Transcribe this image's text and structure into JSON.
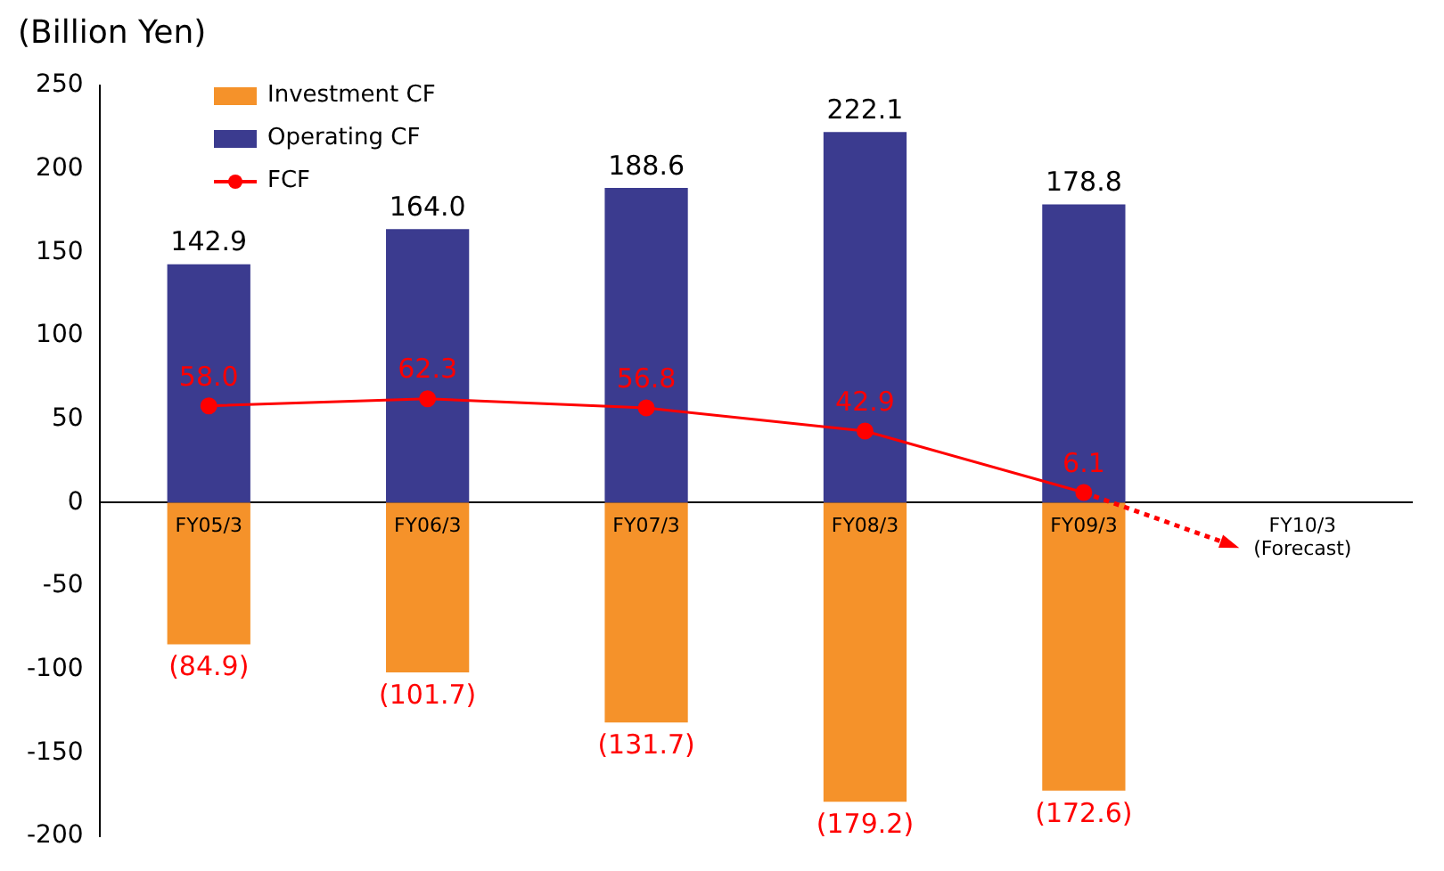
{
  "chart_data": {
    "type": "bar",
    "ylabel": "(Billion Yen)",
    "categories": [
      "FY05/3",
      "FY06/3",
      "FY07/3",
      "FY08/3",
      "FY09/3",
      "FY10/3\n(Forecast)"
    ],
    "stacked": true,
    "ylim": [
      -200,
      250
    ],
    "yticks": [
      -200,
      -150,
      -100,
      -50,
      0,
      50,
      100,
      150,
      200,
      250
    ],
    "grid": false,
    "legend": "top left",
    "series": [
      {
        "name": "Investment CF",
        "color": "#f5922a",
        "values": [
          -84.9,
          -101.7,
          -131.7,
          -179.2,
          -172.6,
          null
        ],
        "value_labels": [
          "(84.9)",
          "(101.7)",
          "(131.7)",
          "(179.2)",
          "(172.6)",
          null
        ]
      },
      {
        "name": "Operating CF",
        "color": "#3b3b8f",
        "values": [
          142.9,
          164.0,
          188.6,
          222.1,
          178.8,
          null
        ],
        "value_labels": [
          "142.9",
          "164.0",
          "188.6",
          "222.1",
          "178.8",
          null
        ]
      },
      {
        "name": "FCF",
        "type": "line",
        "color": "#ff0000",
        "marker": "circle",
        "values": [
          58.0,
          62.3,
          56.8,
          42.9,
          6.1,
          null
        ],
        "value_labels": [
          "58.0",
          "62.3",
          "56.8",
          "42.9",
          "6.1",
          null
        ]
      }
    ]
  }
}
